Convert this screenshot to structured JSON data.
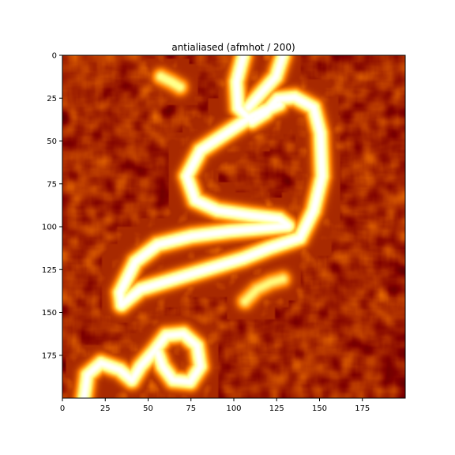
{
  "chart_data": {
    "type": "heatmap",
    "title": "antialiased (afmhot / 200)",
    "colormap": "afmhot",
    "image_shape": [
      200,
      200
    ],
    "x_ticks": [
      0,
      25,
      50,
      75,
      100,
      125,
      150,
      175
    ],
    "y_ticks": [
      0,
      25,
      50,
      75,
      100,
      125,
      150,
      175
    ],
    "xlim": [
      0,
      200
    ],
    "ylim": [
      200,
      0
    ],
    "grid": false,
    "background_level": 0.33,
    "strands": [
      {
        "id": "strand-1",
        "closed": false,
        "intensity": 0.92,
        "points": [
          [
            105,
            0
          ],
          [
            101,
            15
          ],
          [
            102,
            30
          ],
          [
            110,
            38
          ],
          [
            118,
            33
          ],
          [
            125,
            25
          ],
          [
            135,
            24
          ],
          [
            146,
            30
          ],
          [
            150,
            45
          ],
          [
            151,
            70
          ],
          [
            146,
            90
          ],
          [
            138,
            106
          ],
          [
            120,
            112
          ],
          [
            105,
            118
          ],
          [
            85,
            124
          ],
          [
            65,
            130
          ],
          [
            45,
            136
          ],
          [
            34,
            145
          ],
          [
            33,
            138
          ],
          [
            42,
            120
          ],
          [
            55,
            110
          ],
          [
            75,
            105
          ],
          [
            98,
            102
          ],
          [
            120,
            100
          ],
          [
            131,
            99
          ],
          [
            126,
            95
          ],
          [
            110,
            93
          ],
          [
            90,
            90
          ],
          [
            77,
            84
          ],
          [
            72,
            70
          ],
          [
            80,
            55
          ],
          [
            95,
            45
          ],
          [
            110,
            35
          ],
          [
            126,
            28
          ]
        ]
      },
      {
        "id": "strand-2",
        "closed": false,
        "intensity": 0.9,
        "points": [
          [
            128,
            0
          ],
          [
            124,
            12
          ],
          [
            115,
            22
          ],
          [
            108,
            30
          ]
        ]
      },
      {
        "id": "strand-3",
        "closed": false,
        "intensity": 0.9,
        "points": [
          [
            12,
            200
          ],
          [
            14,
            186
          ],
          [
            22,
            179
          ],
          [
            33,
            183
          ],
          [
            40,
            189
          ],
          [
            45,
            181
          ],
          [
            53,
            172
          ],
          [
            60,
            163
          ],
          [
            70,
            162
          ],
          [
            78,
            169
          ],
          [
            80,
            181
          ],
          [
            74,
            190
          ],
          [
            64,
            189
          ],
          [
            58,
            181
          ],
          [
            55,
            173
          ]
        ]
      },
      {
        "id": "fragment-1",
        "closed": false,
        "intensity": 0.6,
        "points": [
          [
            57,
            12
          ],
          [
            63,
            15
          ],
          [
            68,
            18
          ]
        ]
      },
      {
        "id": "fragment-2",
        "closed": false,
        "intensity": 0.55,
        "points": [
          [
            106,
            143
          ],
          [
            113,
            136
          ],
          [
            121,
            132
          ],
          [
            128,
            130
          ]
        ]
      }
    ]
  }
}
